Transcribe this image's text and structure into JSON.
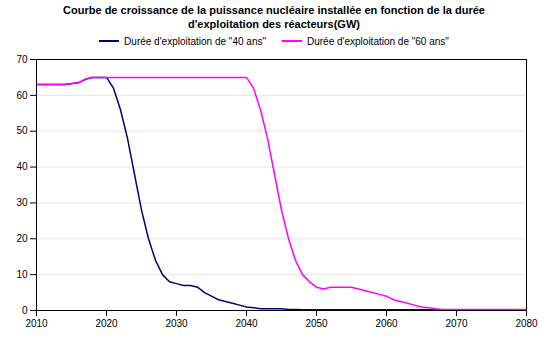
{
  "chart_data": {
    "type": "line",
    "title": "Courbe de croissance de la puissance nucléaire installée en fonction de la durée\nd'exploitation des réacteurs(GW)",
    "xlim": [
      2010,
      2080
    ],
    "ylim": [
      0,
      70
    ],
    "xticks": [
      2010,
      2020,
      2030,
      2040,
      2050,
      2060,
      2070,
      2080
    ],
    "yticks": [
      0,
      10,
      20,
      30,
      40,
      50,
      60,
      70
    ],
    "grid": true,
    "series": [
      {
        "name": "Durée d'exploitation de \"40 ans\"",
        "color": "#000080",
        "x": [
          2010,
          2014,
          2016,
          2017,
          2018,
          2019,
          2020,
          2021,
          2022,
          2023,
          2024,
          2025,
          2026,
          2027,
          2028,
          2029,
          2030,
          2031,
          2032,
          2033,
          2034,
          2035,
          2036,
          2037,
          2038,
          2039,
          2040,
          2041,
          2042,
          2043,
          2044,
          2045,
          2046,
          2047,
          2048,
          2049,
          2050,
          2055,
          2060,
          2070,
          2080
        ],
        "values": [
          63.0,
          63.0,
          63.5,
          64.5,
          65.0,
          65.0,
          65.0,
          62.0,
          56.0,
          48.0,
          38.0,
          28.0,
          20.0,
          14.0,
          10.0,
          8.0,
          7.5,
          7.0,
          7.0,
          6.5,
          5.0,
          4.0,
          3.0,
          2.5,
          2.0,
          1.5,
          1.0,
          0.8,
          0.5,
          0.5,
          0.5,
          0.5,
          0.3,
          0.3,
          0.2,
          0.2,
          0.2,
          0.2,
          0.2,
          0.2,
          0.2
        ]
      },
      {
        "name": "Durée d'exploitation de \"60 ans\"",
        "color": "#FF00FF",
        "x": [
          2010,
          2014,
          2016,
          2017,
          2018,
          2019,
          2020,
          2025,
          2030,
          2035,
          2038,
          2039,
          2040,
          2041,
          2042,
          2043,
          2044,
          2045,
          2046,
          2047,
          2048,
          2049,
          2050,
          2051,
          2052,
          2053,
          2054,
          2055,
          2056,
          2057,
          2058,
          2059,
          2060,
          2061,
          2062,
          2063,
          2064,
          2065,
          2066,
          2067,
          2068,
          2069,
          2070,
          2075,
          2080
        ],
        "values": [
          63.0,
          63.0,
          63.5,
          64.5,
          65.0,
          65.0,
          65.0,
          65.0,
          65.0,
          65.0,
          65.0,
          65.0,
          65.0,
          62.0,
          56.0,
          48.0,
          38.0,
          28.0,
          20.0,
          14.0,
          10.0,
          8.0,
          6.5,
          6.0,
          6.5,
          6.5,
          6.5,
          6.5,
          6.0,
          5.5,
          5.0,
          4.5,
          4.0,
          3.0,
          2.5,
          2.0,
          1.5,
          1.0,
          0.8,
          0.5,
          0.3,
          0.3,
          0.3,
          0.3,
          0.3
        ]
      }
    ]
  }
}
